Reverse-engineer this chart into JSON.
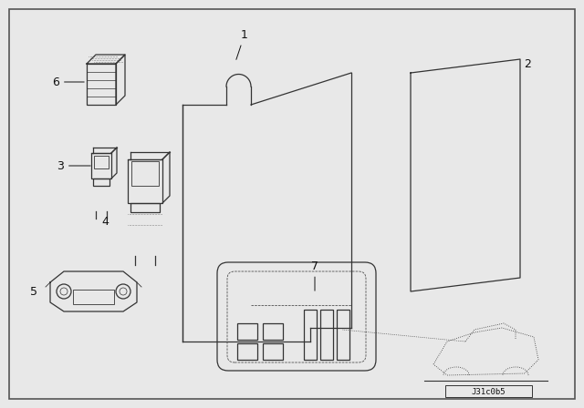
{
  "bg_color": "#e8e8e8",
  "border_color": "#555555",
  "line_color": "#333333",
  "label_color": "#111111",
  "diagram_id": "J31c0b5",
  "fig_width": 6.4,
  "fig_height": 4.48
}
